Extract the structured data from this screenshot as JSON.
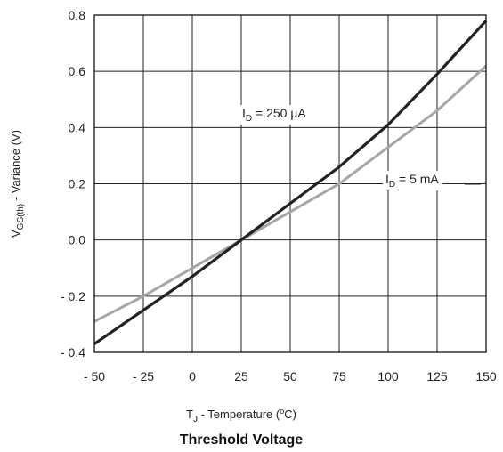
{
  "chart_data": {
    "type": "line",
    "caption": "Threshold Voltage",
    "xlabel": {
      "main": "T",
      "sub": "J",
      "rest": " - Temperature (",
      "sup": "o",
      "tail": "C)"
    },
    "ylabel": {
      "main": "V",
      "sub": "GS(th)",
      "rest": " - Variance (V)"
    },
    "xlim": [
      -50,
      150
    ],
    "ylim": [
      -0.4,
      0.8
    ],
    "xticks": [
      -50,
      -25,
      0,
      25,
      50,
      75,
      100,
      125,
      150
    ],
    "xtick_labels": [
      "- 50",
      "- 25",
      "0",
      "25",
      "50",
      "75",
      "100",
      "125",
      "150"
    ],
    "yticks": [
      -0.4,
      -0.2,
      0.0,
      0.2,
      0.4,
      0.6,
      0.8
    ],
    "ytick_labels": [
      "- 0.4",
      "- 0.2",
      "0.0",
      "0.2",
      "0.4",
      "0.6",
      "0.8"
    ],
    "grid": true,
    "series": [
      {
        "label": {
          "main": "I",
          "sub": "D",
          "rest": " = 250 µA"
        },
        "color": "#222222",
        "x": [
          -50,
          -25,
          0,
          25,
          50,
          75,
          100,
          125,
          150
        ],
        "y": [
          -0.37,
          -0.25,
          -0.13,
          0.0,
          0.13,
          0.26,
          0.41,
          0.59,
          0.78
        ]
      },
      {
        "label": {
          "main": "I",
          "sub": "D",
          "rest": " = 5 mA"
        },
        "color": "#a6a6a6",
        "x": [
          -50,
          -25,
          0,
          25,
          50,
          75,
          100,
          125,
          150
        ],
        "y": [
          -0.29,
          -0.2,
          -0.1,
          0.0,
          0.1,
          0.2,
          0.33,
          0.46,
          0.62
        ]
      }
    ]
  }
}
